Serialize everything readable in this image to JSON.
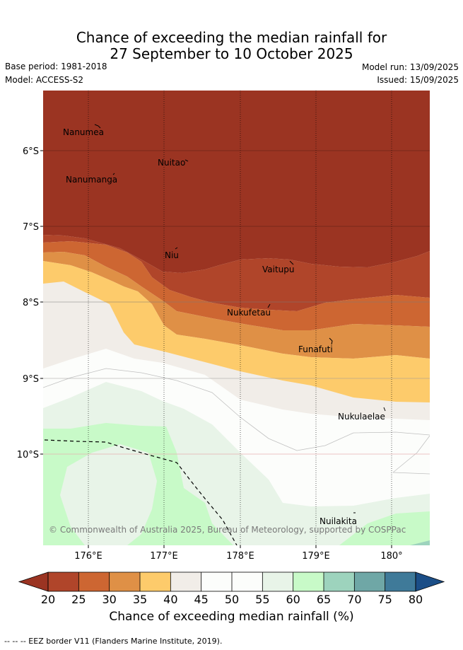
{
  "title": {
    "line1": "Chance of exceeding the median rainfall for",
    "line2": "27 September to 10 October 2025"
  },
  "meta": {
    "base_period": "Base period: 1981-2018",
    "model": "Model: ACCESS-S2",
    "model_run": "Model run: 13/09/2025",
    "issued": "Issued: 15/09/2025"
  },
  "map": {
    "lat_ticks": [
      "6°S",
      "7°S",
      "8°S",
      "9°S",
      "10°S"
    ],
    "lon_ticks": [
      "176°E",
      "177°E",
      "178°E",
      "179°E",
      "180°"
    ],
    "islands": [
      "Nanumea",
      "Nuitao",
      "Nanumanga",
      "Niu",
      "Vaitupu",
      "Nukufetau",
      "Funafuti",
      "Nukulaelae",
      "Nuilakita"
    ],
    "copyright": "© Commonwealth of Australia 2025, Bureau of Meteorology, supported by COSPPac",
    "border_color": "#000000"
  },
  "colorbar": {
    "ticks": [
      "20",
      "25",
      "30",
      "35",
      "40",
      "45",
      "50",
      "55",
      "60",
      "65",
      "70",
      "75",
      "80"
    ],
    "colors": [
      "#b0452a",
      "#cd6632",
      "#df9046",
      "#fdcb6b",
      "#f1ede8",
      "#fcfdfb",
      "#fcfdfb",
      "#e8f4e8",
      "#c8fac8",
      "#9dd3bd",
      "#6fa7a6",
      "#3f7a99"
    ],
    "under_color": "#9b3422",
    "over_color": "#1b4e87",
    "title": "Chance of exceeding median rainfall (%)"
  },
  "footer": "-- -- -- EEZ border V11 (Flanders Marine Institute, 2019)."
}
